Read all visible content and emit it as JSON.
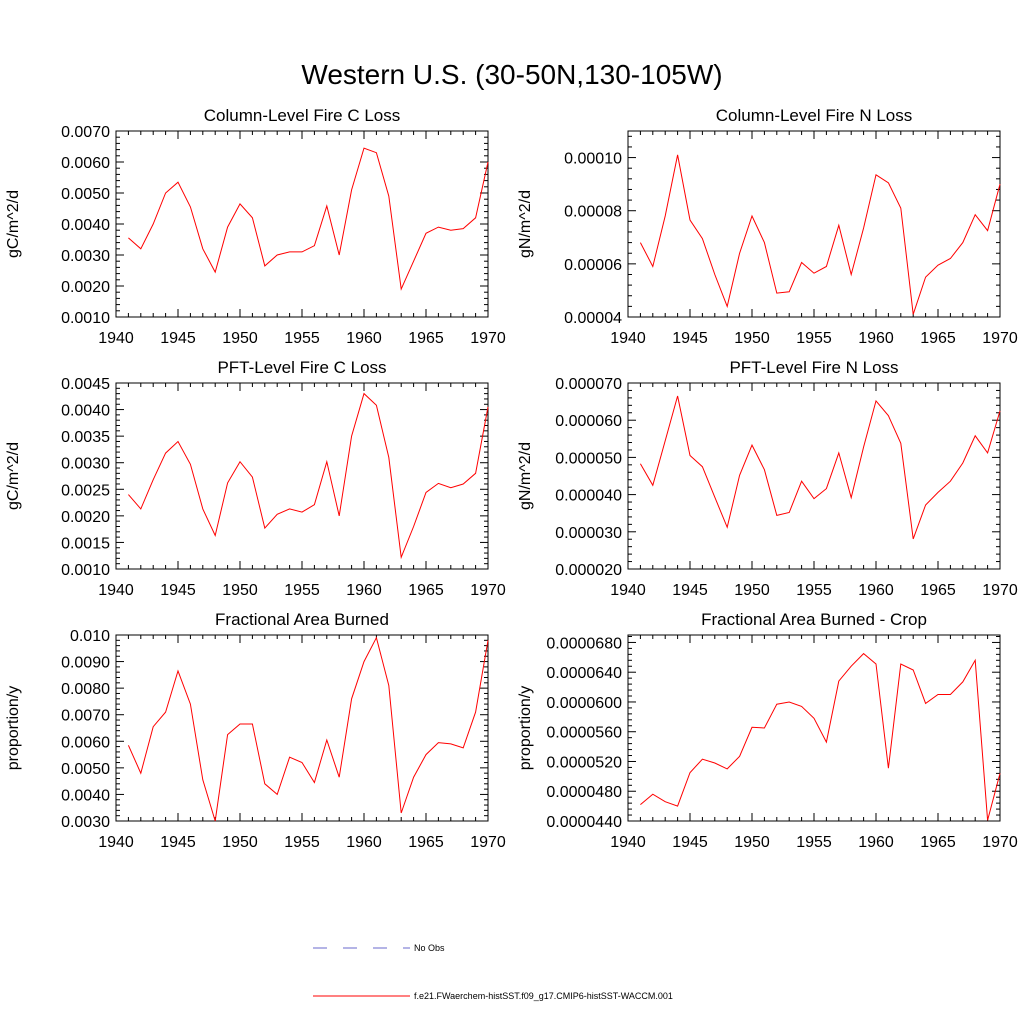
{
  "figure": {
    "title": "Western U.S. (30-50N,130-105W)"
  },
  "legend": [
    {
      "label": "No Obs",
      "color": "#6a6acd",
      "dash": true
    },
    {
      "label": "f.e21.FWaerchem-histSST.f09_g17.CMIP6-histSST-WACCM.001",
      "color": "#ff0000",
      "dash": false
    }
  ],
  "chart_data": [
    {
      "type": "line",
      "title": "Column-Level Fire C Loss",
      "ylabel": "gC/m^2/d",
      "xlim": [
        1940,
        1970
      ],
      "ylim": [
        0.001,
        0.007
      ],
      "yticks": [
        0.001,
        0.002,
        0.003,
        0.004,
        0.005,
        0.006,
        0.007
      ],
      "ytick_labels": [
        "0.0010",
        "0.0020",
        "0.0030",
        "0.0040",
        "0.0050",
        "0.0060",
        "0.0070"
      ],
      "xticks": [
        1940,
        1945,
        1950,
        1955,
        1960,
        1965,
        1970
      ],
      "xtick_labels": [
        "1940",
        "1945",
        "1950",
        "1955",
        "1960",
        "1965",
        "1970"
      ],
      "series": [
        {
          "color": "#ff0000",
          "x": [
            1941,
            1942,
            1943,
            1944,
            1945,
            1946,
            1947,
            1948,
            1949,
            1950,
            1951,
            1952,
            1953,
            1954,
            1955,
            1956,
            1957,
            1958,
            1959,
            1960,
            1961,
            1962,
            1963,
            1964,
            1965,
            1966,
            1967,
            1968,
            1969,
            1970
          ],
          "values": [
            0.00355,
            0.0032,
            0.004,
            0.005,
            0.00535,
            0.00455,
            0.0032,
            0.00245,
            0.0039,
            0.00465,
            0.0042,
            0.00265,
            0.003,
            0.0031,
            0.0031,
            0.0033,
            0.00458,
            0.003,
            0.0051,
            0.00645,
            0.0063,
            0.0049,
            0.0019,
            0.0028,
            0.0037,
            0.0039,
            0.0038,
            0.00385,
            0.0042,
            0.006
          ]
        }
      ]
    },
    {
      "type": "line",
      "title": "Column-Level Fire N Loss",
      "ylabel": "gN/m^2/d",
      "xlim": [
        1940,
        1970
      ],
      "ylim": [
        4e-05,
        0.00011
      ],
      "yticks": [
        4e-05,
        6e-05,
        8e-05,
        0.0001
      ],
      "ytick_labels": [
        "0.00004",
        "0.00006",
        "0.00008",
        "0.00010"
      ],
      "xticks": [
        1940,
        1945,
        1950,
        1955,
        1960,
        1965,
        1970
      ],
      "xtick_labels": [
        "1940",
        "1945",
        "1950",
        "1955",
        "1960",
        "1965",
        "1970"
      ],
      "series": [
        {
          "color": "#ff0000",
          "x": [
            1941,
            1942,
            1943,
            1944,
            1945,
            1946,
            1947,
            1948,
            1949,
            1950,
            1951,
            1952,
            1953,
            1954,
            1955,
            1956,
            1957,
            1958,
            1959,
            1960,
            1961,
            1962,
            1963,
            1964,
            1965,
            1966,
            1967,
            1968,
            1969,
            1970
          ],
          "values": [
            6.8e-05,
            5.9e-05,
            7.8e-05,
            0.000101,
            7.65e-05,
            6.95e-05,
            5.6e-05,
            4.4e-05,
            6.4e-05,
            7.8e-05,
            6.8e-05,
            4.9e-05,
            4.95e-05,
            6.05e-05,
            5.65e-05,
            5.9e-05,
            7.45e-05,
            5.6e-05,
            7.35e-05,
            9.35e-05,
            9.05e-05,
            8.1e-05,
            4.1e-05,
            5.5e-05,
            5.95e-05,
            6.2e-05,
            6.8e-05,
            7.85e-05,
            7.25e-05,
            9e-05
          ]
        }
      ]
    },
    {
      "type": "line",
      "title": "PFT-Level Fire C Loss",
      "ylabel": "gC/m^2/d",
      "xlim": [
        1940,
        1970
      ],
      "ylim": [
        0.001,
        0.0045
      ],
      "yticks": [
        0.001,
        0.0015,
        0.002,
        0.0025,
        0.003,
        0.0035,
        0.004,
        0.0045
      ],
      "ytick_labels": [
        "0.0010",
        "0.0015",
        "0.0020",
        "0.0025",
        "0.0030",
        "0.0035",
        "0.0040",
        "0.0045"
      ],
      "xticks": [
        1940,
        1945,
        1950,
        1955,
        1960,
        1965,
        1970
      ],
      "xtick_labels": [
        "1940",
        "1945",
        "1950",
        "1955",
        "1960",
        "1965",
        "1970"
      ],
      "series": [
        {
          "color": "#ff0000",
          "x": [
            1941,
            1942,
            1943,
            1944,
            1945,
            1946,
            1947,
            1948,
            1949,
            1950,
            1951,
            1952,
            1953,
            1954,
            1955,
            1956,
            1957,
            1958,
            1959,
            1960,
            1961,
            1962,
            1963,
            1964,
            1965,
            1966,
            1967,
            1968,
            1969,
            1970
          ],
          "values": [
            0.0024,
            0.00213,
            0.00268,
            0.00318,
            0.0034,
            0.00297,
            0.00213,
            0.00163,
            0.00262,
            0.00302,
            0.00273,
            0.00177,
            0.00203,
            0.00213,
            0.00207,
            0.00221,
            0.00302,
            0.002,
            0.0035,
            0.0043,
            0.00408,
            0.0031,
            0.00122,
            0.0018,
            0.00244,
            0.00261,
            0.00253,
            0.0026,
            0.0028,
            0.00405
          ]
        }
      ]
    },
    {
      "type": "line",
      "title": "PFT-Level Fire N Loss",
      "ylabel": "gN/m^2/d",
      "xlim": [
        1940,
        1970
      ],
      "ylim": [
        2e-05,
        7e-05
      ],
      "yticks": [
        2e-05,
        3e-05,
        4e-05,
        5e-05,
        6e-05,
        7e-05
      ],
      "ytick_labels": [
        "0.000020",
        "0.000030",
        "0.000040",
        "0.000050",
        "0.000060",
        "0.000070"
      ],
      "xticks": [
        1940,
        1945,
        1950,
        1955,
        1960,
        1965,
        1970
      ],
      "xtick_labels": [
        "1940",
        "1945",
        "1950",
        "1955",
        "1960",
        "1965",
        "1970"
      ],
      "series": [
        {
          "color": "#ff0000",
          "x": [
            1941,
            1942,
            1943,
            1944,
            1945,
            1946,
            1947,
            1948,
            1949,
            1950,
            1951,
            1952,
            1953,
            1954,
            1955,
            1956,
            1957,
            1958,
            1959,
            1960,
            1961,
            1962,
            1963,
            1964,
            1965,
            1966,
            1967,
            1968,
            1969,
            1970
          ],
          "values": [
            4.83e-05,
            4.25e-05,
            5.45e-05,
            6.65e-05,
            5.05e-05,
            4.75e-05,
            3.93e-05,
            3.12e-05,
            4.52e-05,
            5.33e-05,
            4.67e-05,
            3.44e-05,
            3.52e-05,
            4.36e-05,
            3.89e-05,
            4.16e-05,
            5.12e-05,
            3.92e-05,
            5.28e-05,
            6.52e-05,
            6.12e-05,
            5.38e-05,
            2.81e-05,
            3.72e-05,
            4.06e-05,
            4.36e-05,
            4.85e-05,
            5.58e-05,
            5.12e-05,
            6.25e-05
          ]
        }
      ]
    },
    {
      "type": "line",
      "title": "Fractional Area Burned",
      "ylabel": "proportion/y",
      "xlim": [
        1940,
        1970
      ],
      "ylim": [
        0.003,
        0.01
      ],
      "yticks": [
        0.003,
        0.004,
        0.005,
        0.006,
        0.007,
        0.008,
        0.009,
        0.01
      ],
      "ytick_labels": [
        "0.0030",
        "0.0040",
        "0.0050",
        "0.0060",
        "0.0070",
        "0.0080",
        "0.0090",
        "0.010"
      ],
      "xticks": [
        1940,
        1945,
        1950,
        1955,
        1960,
        1965,
        1970
      ],
      "xtick_labels": [
        "1940",
        "1945",
        "1950",
        "1955",
        "1960",
        "1965",
        "1970"
      ],
      "series": [
        {
          "color": "#ff0000",
          "x": [
            1941,
            1942,
            1943,
            1944,
            1945,
            1946,
            1947,
            1948,
            1949,
            1950,
            1951,
            1952,
            1953,
            1954,
            1955,
            1956,
            1957,
            1958,
            1959,
            1960,
            1961,
            1962,
            1963,
            1964,
            1965,
            1966,
            1967,
            1968,
            1969,
            1970
          ],
          "values": [
            0.00585,
            0.0048,
            0.00655,
            0.0071,
            0.00865,
            0.0074,
            0.00455,
            0.003,
            0.00625,
            0.00665,
            0.00665,
            0.0044,
            0.004,
            0.0054,
            0.0052,
            0.00445,
            0.00605,
            0.00465,
            0.0076,
            0.009,
            0.0099,
            0.0081,
            0.0033,
            0.00465,
            0.0055,
            0.00595,
            0.0059,
            0.00575,
            0.0071,
            0.0098
          ]
        }
      ]
    },
    {
      "type": "line",
      "title": "Fractional Area Burned - Crop",
      "ylabel": "proportion/y",
      "xlim": [
        1940,
        1970
      ],
      "ylim": [
        4.4e-05,
        6.9e-05
      ],
      "yticks": [
        4.4e-05,
        4.8e-05,
        5.2e-05,
        5.6e-05,
        6e-05,
        6.4e-05,
        6.8e-05
      ],
      "ytick_labels": [
        "0.0000440",
        "0.0000480",
        "0.0000520",
        "0.0000560",
        "0.0000600",
        "0.0000640",
        "0.0000680"
      ],
      "xticks": [
        1940,
        1945,
        1950,
        1955,
        1960,
        1965,
        1970
      ],
      "xtick_labels": [
        "1940",
        "1945",
        "1950",
        "1955",
        "1960",
        "1965",
        "1970"
      ],
      "series": [
        {
          "color": "#ff0000",
          "x": [
            1941,
            1942,
            1943,
            1944,
            1945,
            1946,
            1947,
            1948,
            1949,
            1950,
            1951,
            1952,
            1953,
            1954,
            1955,
            1956,
            1957,
            1958,
            1959,
            1960,
            1961,
            1962,
            1963,
            1964,
            1965,
            1966,
            1967,
            1968,
            1969,
            1970
          ],
          "values": [
            4.62e-05,
            4.76e-05,
            4.66e-05,
            4.6e-05,
            5.05e-05,
            5.23e-05,
            5.18e-05,
            5.1e-05,
            5.27e-05,
            5.66e-05,
            5.65e-05,
            5.97e-05,
            6e-05,
            5.94e-05,
            5.78e-05,
            5.46e-05,
            6.28e-05,
            6.48e-05,
            6.65e-05,
            6.51e-05,
            5.11e-05,
            6.51e-05,
            6.43e-05,
            5.98e-05,
            6.1e-05,
            6.1e-05,
            6.27e-05,
            6.56e-05,
            4.41e-05,
            5.04e-05
          ]
        }
      ]
    }
  ]
}
